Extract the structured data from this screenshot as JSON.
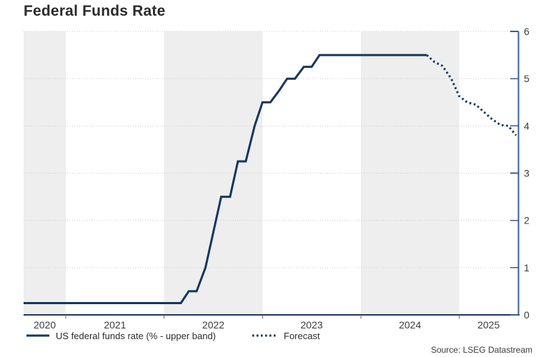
{
  "header": {
    "title": "Federal Funds Rate"
  },
  "legend": {
    "series_label": "US federal funds rate (% - upper band)",
    "forecast_label": "Forecast"
  },
  "source": "Source: LSEG Datastream",
  "colors": {
    "line_navy": "#17375e",
    "band_gray": "#eeeeee",
    "grid_gray": "#c9c9c9",
    "y_axis_blue": "#38618c",
    "x_axis_navy": "#1b3a5f",
    "x_tick_gray": "#6b6b6b",
    "tick_text": "#3c3c3c",
    "title_text": "#2b2b2b",
    "source_text": "#3a3a3a"
  },
  "chart_data": {
    "type": "line",
    "title": "Federal Funds Rate",
    "xlabel": "",
    "ylabel": "",
    "ylim": [
      0,
      6
    ],
    "y_ticks": [
      0,
      1,
      2,
      3,
      4,
      5,
      6
    ],
    "y_axis_side": "right",
    "x_tick_years": [
      2020,
      2021,
      2022,
      2023,
      2024,
      2025
    ],
    "x_range_years": [
      2020.57,
      2025.6
    ],
    "grid": "dotted-horizontal",
    "legend_position": "bottom",
    "shaded_year_bands": [
      2020,
      2022,
      2024
    ],
    "series": [
      {
        "name": "US federal funds rate (% - upper band)",
        "style": "solid",
        "points": [
          [
            2020.57,
            0.25
          ],
          [
            2022.17,
            0.25
          ],
          [
            2022.25,
            0.5
          ],
          [
            2022.33,
            0.5
          ],
          [
            2022.42,
            1.0
          ],
          [
            2022.5,
            1.75
          ],
          [
            2022.58,
            2.5
          ],
          [
            2022.67,
            2.5
          ],
          [
            2022.75,
            3.25
          ],
          [
            2022.83,
            3.25
          ],
          [
            2022.92,
            4.0
          ],
          [
            2023.0,
            4.5
          ],
          [
            2023.08,
            4.5
          ],
          [
            2023.17,
            4.75
          ],
          [
            2023.25,
            5.0
          ],
          [
            2023.33,
            5.0
          ],
          [
            2023.42,
            5.25
          ],
          [
            2023.5,
            5.25
          ],
          [
            2023.58,
            5.5
          ],
          [
            2024.67,
            5.5
          ]
        ]
      },
      {
        "name": "Forecast",
        "style": "dotted",
        "points": [
          [
            2024.67,
            5.5
          ],
          [
            2024.75,
            5.35
          ],
          [
            2024.83,
            5.27
          ],
          [
            2024.92,
            5.0
          ],
          [
            2025.0,
            4.63
          ],
          [
            2025.08,
            4.5
          ],
          [
            2025.17,
            4.45
          ],
          [
            2025.25,
            4.3
          ],
          [
            2025.33,
            4.15
          ],
          [
            2025.42,
            4.02
          ],
          [
            2025.5,
            4.0
          ],
          [
            2025.58,
            3.8
          ]
        ]
      }
    ]
  }
}
